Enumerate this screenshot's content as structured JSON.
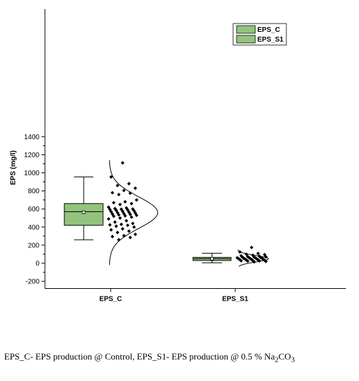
{
  "chart_data": {
    "type": "box",
    "ylabel": "EPS (mg/l)",
    "xlabel": "",
    "ylim": [
      -280,
      1400
    ],
    "yticks": [
      -200,
      0,
      200,
      400,
      600,
      800,
      1000,
      1200,
      1400
    ],
    "categories": [
      "EPS_C",
      "EPS_S1"
    ],
    "legend": {
      "placement": "top-right",
      "entries": [
        "EPS_C",
        "EPS_S1"
      ]
    },
    "box_color": "#92c47d",
    "series": [
      {
        "name": "EPS_C",
        "box": {
          "whisker_low": 260,
          "q1": 420,
          "median": 570,
          "mean": 563,
          "q3": 660,
          "whisker_high": 955
        },
        "points": [
          1110,
          955,
          880,
          860,
          830,
          805,
          780,
          775,
          760,
          700,
          680,
          670,
          660,
          650,
          620,
          612,
          605,
          600,
          598,
          595,
          590,
          585,
          580,
          575,
          570,
          565,
          560,
          555,
          550,
          545,
          540,
          535,
          530,
          525,
          520,
          510,
          500,
          490,
          470,
          455,
          440,
          430,
          425,
          420,
          410,
          400,
          380,
          370,
          355,
          340,
          320,
          305,
          295,
          285,
          260
        ],
        "curve": {
          "mean": 560,
          "sd": 175,
          "min": -20,
          "max": 1140
        }
      },
      {
        "name": "EPS_S1",
        "box": {
          "whisker_low": 5,
          "q1": 30,
          "median": 50,
          "mean": 50,
          "q3": 65,
          "whisker_high": 110
        },
        "points": [
          175,
          125,
          108,
          100,
          95,
          88,
          82,
          78,
          74,
          70,
          68,
          66,
          64,
          62,
          60,
          58,
          56,
          54,
          52,
          50,
          48,
          46,
          44,
          42,
          40,
          38,
          36,
          34,
          30,
          28,
          26,
          24,
          20,
          15
        ],
        "curve": {
          "mean": 50,
          "sd": 35,
          "min": -35,
          "max": 150
        }
      }
    ]
  },
  "caption": {
    "text_part1": "EPS_C- EPS production @ Control, EPS_S1- EPS production @ 0.5 % Na",
    "sub1": "2",
    "text_part2": "CO",
    "sub2": "3"
  }
}
